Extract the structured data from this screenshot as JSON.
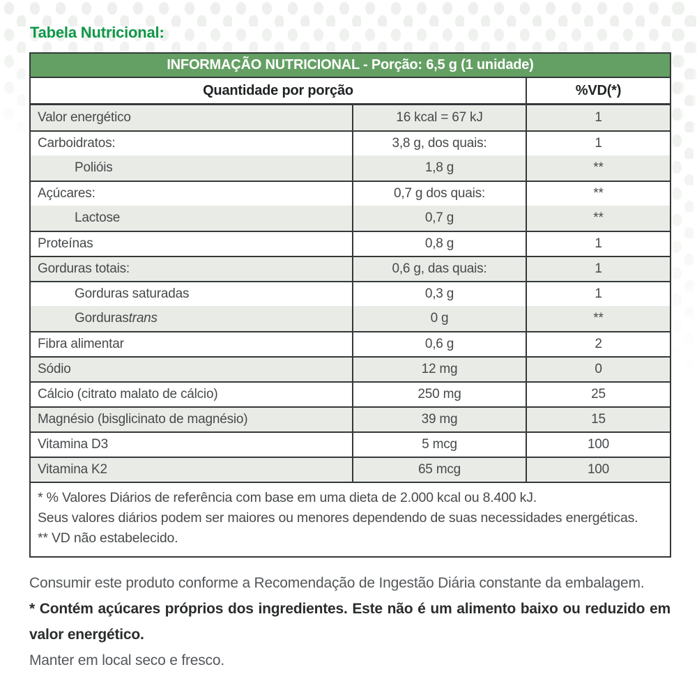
{
  "page": {
    "section_title": "Tabela Nutricional:"
  },
  "colors": {
    "title_green": "#0f9747",
    "header_green": "#64a064",
    "row_shade": "#e9ece6",
    "border_dark": "#353839"
  },
  "table": {
    "header": "INFORMAÇÃO NUTRICIONAL - Porção: 6,5 g (1 unidade)",
    "columns": {
      "quantity": "Quantidade por porção",
      "dv": "%VD(*)"
    },
    "rows": [
      {
        "label": "Valor energético",
        "value": "16 kcal = 67 kJ",
        "dv": "1",
        "shaded": true,
        "indent": false,
        "border_top": false
      },
      {
        "label": "Carboidratos:",
        "value": "3,8 g, dos quais:",
        "dv": "1",
        "shaded": false,
        "indent": false,
        "border_top": true
      },
      {
        "label": "Polióis",
        "value": "1,8 g",
        "dv": "**",
        "shaded": true,
        "indent": true,
        "border_top": false
      },
      {
        "label": "Açúcares:",
        "value": "0,7 g dos quais:",
        "dv": "**",
        "shaded": false,
        "indent": false,
        "border_top": true
      },
      {
        "label": "Lactose",
        "value": "0,7 g",
        "dv": "**",
        "shaded": true,
        "indent": true,
        "border_top": false
      },
      {
        "label": "Proteínas",
        "value": "0,8 g",
        "dv": "1",
        "shaded": false,
        "indent": false,
        "border_top": true
      },
      {
        "label": "Gorduras totais:",
        "value": "0,6 g, das quais:",
        "dv": "1",
        "shaded": true,
        "indent": false,
        "border_top": true
      },
      {
        "label": "Gorduras saturadas",
        "value": "0,3 g",
        "dv": "1",
        "shaded": false,
        "indent": true,
        "border_top": true
      },
      {
        "label": "Gorduras ",
        "label_italic": "trans",
        "value": "0 g",
        "dv": "**",
        "shaded": true,
        "indent": true,
        "border_top": false
      },
      {
        "label": "Fibra alimentar",
        "value": "0,6 g",
        "dv": "2",
        "shaded": false,
        "indent": false,
        "border_top": true
      },
      {
        "label": "Sódio",
        "value": "12 mg",
        "dv": "0",
        "shaded": true,
        "indent": false,
        "border_top": true
      },
      {
        "label": "Cálcio (citrato malato de cálcio)",
        "value": "250 mg",
        "dv": "25",
        "shaded": false,
        "indent": false,
        "border_top": true
      },
      {
        "label": "Magnésio (bisglicinato de magnésio)",
        "value": "39 mg",
        "dv": "15",
        "shaded": true,
        "indent": false,
        "border_top": true
      },
      {
        "label": "Vitamina D3",
        "value": "5 mcg",
        "dv": "100",
        "shaded": false,
        "indent": false,
        "border_top": true
      },
      {
        "label": "Vitamina K2",
        "value": "65 mcg",
        "dv": "100",
        "shaded": true,
        "indent": false,
        "border_top": true
      }
    ],
    "footnotes": [
      "* % Valores Diários de referência com base em uma dieta de 2.000 kcal ou 8.400 kJ.",
      "Seus valores diários podem ser maiores ou menores dependendo de suas necessidades energéticas.",
      "** VD não estabelecido."
    ]
  },
  "notes": [
    {
      "text": "Consumir este produto conforme a Recomendação de Ingestão Diária constante da embalagem.",
      "bold": false
    },
    {
      "text": "* Contém açúcares próprios dos ingredientes. Este não é um alimento baixo ou reduzido em valor energético.",
      "bold": true
    },
    {
      "text": "Manter em local seco e fresco.",
      "bold": false
    }
  ]
}
